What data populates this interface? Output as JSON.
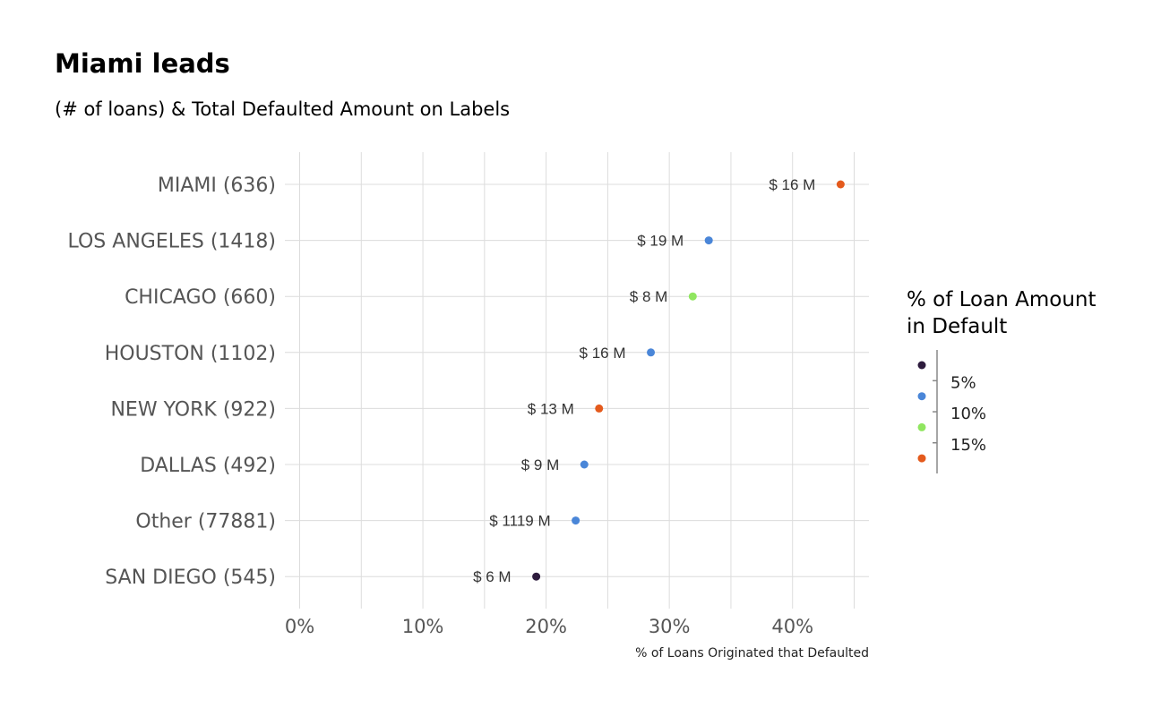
{
  "chart_data": {
    "type": "scatter",
    "title": "Miami leads",
    "subtitle": "(# of loans) & Total Defaulted Amount on Labels",
    "xlabel": "% of Loans Originated that Defaulted",
    "ylabel": "",
    "xlim": [
      -0.012,
      0.462
    ],
    "x_ticks": [
      0,
      0.1,
      0.2,
      0.3,
      0.4
    ],
    "x_tick_labels": [
      "0%",
      "10%",
      "20%",
      "30%",
      "40%"
    ],
    "grid": true,
    "legend": {
      "title_lines": [
        "% of Loan Amount",
        "in Default"
      ],
      "placement": "right",
      "labels": [
        "5%",
        "10%",
        "15%"
      ],
      "swatches": [
        "#2d1b3d",
        "#4a86d8",
        "#90e660",
        "#e45a1c"
      ]
    },
    "points": [
      {
        "category": "MIAMI (636)",
        "x": 0.439,
        "label": "$ 16 M",
        "color": "#e45a1c"
      },
      {
        "category": "LOS ANGELES (1418)",
        "x": 0.332,
        "label": "$ 19 M",
        "color": "#4a86d8"
      },
      {
        "category": "CHICAGO (660)",
        "x": 0.319,
        "label": "$ 8 M",
        "color": "#90e660"
      },
      {
        "category": "HOUSTON (1102)",
        "x": 0.285,
        "label": "$ 16 M",
        "color": "#4a86d8"
      },
      {
        "category": "NEW YORK (922)",
        "x": 0.243,
        "label": "$ 13 M",
        "color": "#e45a1c"
      },
      {
        "category": "DALLAS (492)",
        "x": 0.231,
        "label": "$ 9 M",
        "color": "#4a86d8"
      },
      {
        "category": "Other (77881)",
        "x": 0.224,
        "label": "$ 1119 M",
        "color": "#4a86d8"
      },
      {
        "category": "SAN DIEGO (545)",
        "x": 0.192,
        "label": "$ 6 M",
        "color": "#2d1b3d"
      }
    ]
  }
}
